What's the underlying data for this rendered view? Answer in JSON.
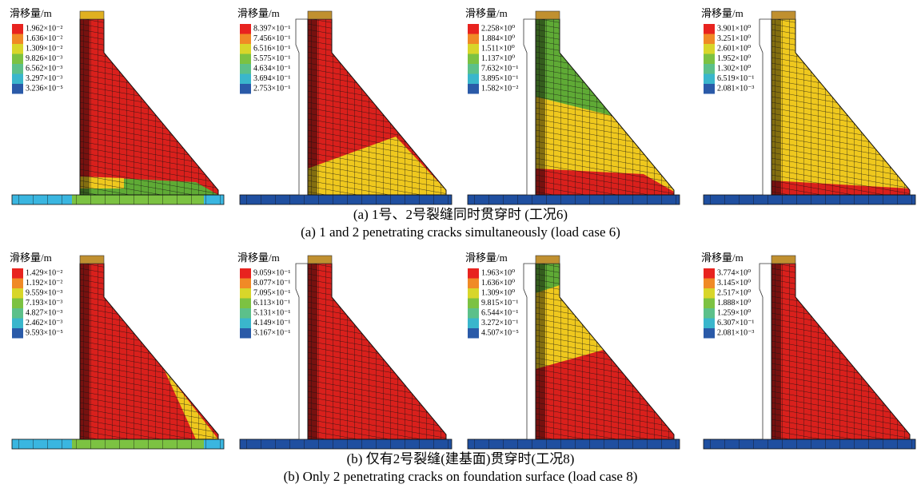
{
  "rows": [
    {
      "panels": [
        {
          "legend_title": "滑移量/m",
          "legend_labels": [
            "1.962×10⁻²",
            "1.636×10⁻²",
            "1.309×10⁻²",
            "9.826×10⁻³",
            "6.562×10⁻³",
            "3.297×10⁻³",
            "3.236×10⁻⁵"
          ]
        },
        {
          "legend_title": "滑移量/m",
          "legend_labels": [
            "8.397×10⁻¹",
            "7.456×10⁻¹",
            "6.516×10⁻¹",
            "5.575×10⁻¹",
            "4.634×10⁻¹",
            "3.694×10⁻¹",
            "2.753×10⁻¹"
          ]
        },
        {
          "legend_title": "滑移量/m",
          "legend_labels": [
            "2.258×10⁰",
            "1.884×10⁰",
            "1.511×10⁰",
            "1.137×10⁰",
            "7.632×10⁻¹",
            "3.895×10⁻¹",
            "1.582×10⁻²"
          ]
        },
        {
          "legend_title": "滑移量/m",
          "legend_labels": [
            "3.901×10⁰",
            "3.251×10⁰",
            "2.601×10⁰",
            "1.952×10⁰",
            "1.302×10⁰",
            "6.519×10⁻¹",
            "2.081×10⁻³"
          ]
        }
      ],
      "caption_zh": "(a)  1号、2号裂缝同时贯穿时 (工况6)",
      "caption_en": "(a)  1 and 2 penetrating cracks simultaneously (load case 6)"
    },
    {
      "panels": [
        {
          "legend_title": "滑移量/m",
          "legend_labels": [
            "1.429×10⁻²",
            "1.192×10⁻²",
            "9.559×10⁻³",
            "7.193×10⁻³",
            "4.827×10⁻³",
            "2.462×10⁻³",
            "9.593×10⁻⁵"
          ]
        },
        {
          "legend_title": "滑移量/m",
          "legend_labels": [
            "9.059×10⁻¹",
            "8.077×10⁻¹",
            "7.095×10⁻¹",
            "6.113×10⁻¹",
            "5.131×10⁻¹",
            "4.149×10⁻¹",
            "3.167×10⁻¹"
          ]
        },
        {
          "legend_title": "滑移量/m",
          "legend_labels": [
            "1.963×10⁰",
            "1.636×10⁰",
            "1.309×10⁰",
            "9.815×10⁻¹",
            "6.544×10⁻¹",
            "3.272×10⁻¹",
            "4.507×10⁻⁵"
          ]
        },
        {
          "legend_title": "滑移量/m",
          "legend_labels": [
            "3.774×10⁰",
            "3.145×10⁰",
            "2.517×10⁰",
            "1.888×10⁰",
            "1.259×10⁰",
            "6.307×10⁻¹",
            "2.081×10⁻³"
          ]
        }
      ],
      "caption_zh": "(b)  仅有2号裂缝(建基面)贯穿时(工况8)",
      "caption_en": "(b)  Only 2 penetrating cracks on foundation surface (load case 8)"
    }
  ]
}
